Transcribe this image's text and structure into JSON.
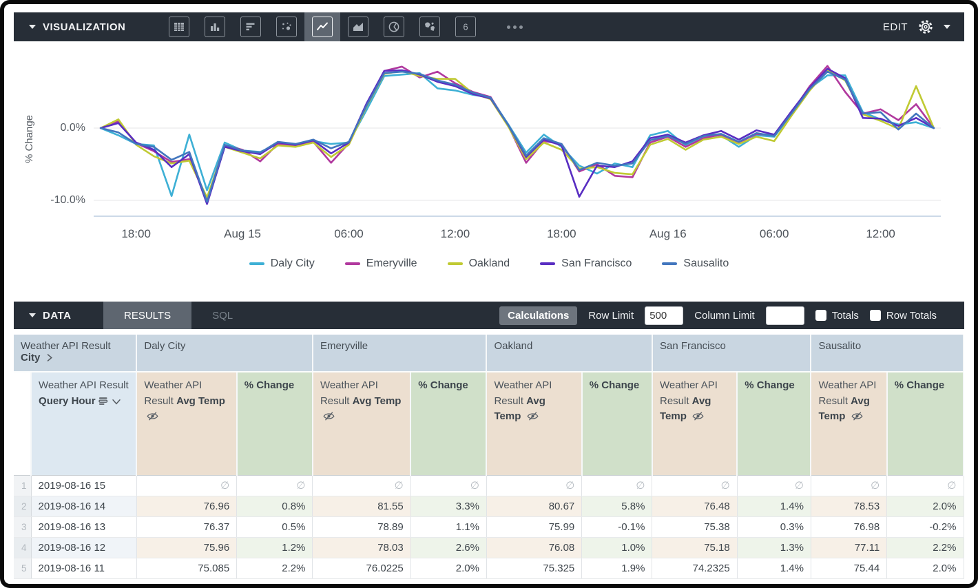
{
  "viz_bar": {
    "title": "VISUALIZATION",
    "icons": [
      "table",
      "column",
      "bar",
      "scatter",
      "line",
      "area",
      "pie",
      "map",
      "single-value"
    ],
    "selected_icon": "line",
    "single_value_glyph": "6",
    "edit_label": "EDIT"
  },
  "chart_data": {
    "type": "line",
    "title": "",
    "xlabel": "",
    "ylabel": "% Change",
    "grid": "horizontal",
    "legend_position": "bottom",
    "ylim": [
      -11.5,
      9.5
    ],
    "y_gridlines": [
      {
        "value": 0,
        "label": "0.0%"
      },
      {
        "value": -10,
        "label": "-10.0%"
      }
    ],
    "x_start": "2019-08-14 16:00",
    "x_end": "2019-08-16 15:00",
    "x_interval_hours": 1,
    "x_ticks": [
      {
        "index": 2,
        "label": "18:00"
      },
      {
        "index": 8,
        "label": "Aug 15"
      },
      {
        "index": 14,
        "label": "06:00"
      },
      {
        "index": 20,
        "label": "12:00"
      },
      {
        "index": 26,
        "label": "18:00"
      },
      {
        "index": 32,
        "label": "Aug 16"
      },
      {
        "index": 38,
        "label": "06:00"
      },
      {
        "index": 44,
        "label": "12:00"
      }
    ],
    "series": [
      {
        "name": "Daly City",
        "color": "#3EB0D5",
        "values": [
          0,
          -1.0,
          -2.2,
          -2.4,
          -9.4,
          -0.9,
          -8.6,
          -2.0,
          -3.1,
          -3.3,
          -2.2,
          -2.4,
          -1.8,
          -2.2,
          -2.0,
          2.5,
          7.2,
          7.4,
          7.6,
          5.5,
          5.2,
          4.6,
          4.2,
          0.5,
          -3.4,
          -0.9,
          -2.6,
          -5.2,
          -6.3,
          -4.9,
          -5.4,
          -1.0,
          -0.4,
          -2.4,
          -1.2,
          -1.0,
          -2.6,
          -1.0,
          -1.2,
          2.0,
          5.5,
          7.3,
          7.3,
          2.2,
          1.2,
          0.5,
          0.8,
          0.0
        ]
      },
      {
        "name": "Emeryville",
        "color": "#B1399E",
        "values": [
          0,
          0.9,
          -2.1,
          -3.2,
          -4.7,
          -4.3,
          -9.8,
          -2.4,
          -3.0,
          -4.6,
          -2.2,
          -2.4,
          -1.9,
          -4.8,
          -2.1,
          3.2,
          7.9,
          8.5,
          7.0,
          7.8,
          6.2,
          5.0,
          4.3,
          0.3,
          -4.8,
          -1.8,
          -2.2,
          -6.0,
          -5.0,
          -6.6,
          -6.8,
          -2.0,
          -1.2,
          -2.6,
          -1.4,
          -0.9,
          -2.0,
          -0.8,
          -1.0,
          2.2,
          5.8,
          8.6,
          5.0,
          2.0,
          2.6,
          1.1,
          3.3,
          0.0
        ]
      },
      {
        "name": "Oakland",
        "color": "#C0CA33",
        "values": [
          0,
          1.2,
          -2.3,
          -3.9,
          -4.9,
          -4.5,
          -9.6,
          -2.6,
          -3.4,
          -4.2,
          -2.4,
          -2.6,
          -2.0,
          -4.0,
          -2.3,
          3.0,
          7.5,
          7.9,
          7.2,
          6.8,
          6.8,
          4.8,
          4.0,
          0.2,
          -4.3,
          -2.0,
          -3.0,
          -5.6,
          -5.4,
          -6.2,
          -6.4,
          -2.3,
          -1.5,
          -3.0,
          -1.6,
          -1.2,
          -2.2,
          -1.2,
          -1.8,
          1.8,
          5.2,
          8.0,
          6.6,
          1.9,
          1.0,
          -0.1,
          5.8,
          0.0
        ]
      },
      {
        "name": "San Francisco",
        "color": "#592EC2",
        "values": [
          0,
          0.7,
          -2.0,
          -3.0,
          -5.4,
          -3.6,
          -10.5,
          -2.6,
          -3.2,
          -3.6,
          -2.0,
          -2.3,
          -1.7,
          -3.5,
          -2.0,
          3.4,
          7.9,
          8.0,
          7.4,
          6.4,
          5.8,
          4.7,
          4.1,
          0.4,
          -4.0,
          -1.6,
          -2.4,
          -9.5,
          -5.2,
          -5.4,
          -4.6,
          -1.4,
          -0.9,
          -2.0,
          -1.0,
          -0.4,
          -1.6,
          -0.3,
          -0.9,
          2.4,
          5.6,
          8.2,
          6.9,
          1.4,
          1.3,
          0.3,
          1.4,
          0.0
        ]
      },
      {
        "name": "Sausalito",
        "color": "#4276BE",
        "values": [
          0,
          -0.6,
          -2.2,
          -2.6,
          -4.4,
          -3.3,
          -10.2,
          -2.3,
          -3.1,
          -3.4,
          -1.9,
          -2.2,
          -1.6,
          -2.8,
          -1.9,
          3.1,
          7.6,
          7.8,
          7.5,
          6.6,
          6.0,
          4.9,
          4.2,
          0.4,
          -3.8,
          -1.4,
          -2.2,
          -5.8,
          -4.8,
          -5.2,
          -4.9,
          -1.7,
          -1.1,
          -2.2,
          -1.1,
          -0.8,
          -1.9,
          -0.7,
          -1.1,
          2.1,
          5.4,
          7.8,
          6.7,
          2.0,
          2.2,
          -0.2,
          2.0,
          0.0
        ]
      }
    ]
  },
  "data_bar": {
    "title": "DATA",
    "tabs": [
      {
        "label": "RESULTS",
        "active": true
      },
      {
        "label": "SQL",
        "active": false
      }
    ],
    "calculations_label": "Calculations",
    "row_limit_label": "Row Limit",
    "row_limit_value": "500",
    "column_limit_label": "Column Limit",
    "column_limit_value": "",
    "totals_label": "Totals",
    "row_totals_label": "Row Totals"
  },
  "table": {
    "corner_header": {
      "prefix": "Weather API Result",
      "bold": "City"
    },
    "cities": [
      "Daly City",
      "Emeryville",
      "Oakland",
      "San Francisco",
      "Sausalito"
    ],
    "hour_header": {
      "prefix": "Weather API Result",
      "bold": "Query Hour"
    },
    "temp_header": {
      "prefix": "Weather API Result",
      "bold": "Avg Temp"
    },
    "change_header": {
      "bold": "% Change"
    },
    "null_symbol": "∅",
    "rows": [
      {
        "n": "1",
        "hour": "2019-08-16 15",
        "cells": [
          [
            "∅",
            "∅"
          ],
          [
            "∅",
            "∅"
          ],
          [
            "∅",
            "∅"
          ],
          [
            "∅",
            "∅"
          ],
          [
            "∅",
            "∅"
          ]
        ]
      },
      {
        "n": "2",
        "hour": "2019-08-16 14",
        "cells": [
          [
            "76.96",
            "0.8%"
          ],
          [
            "81.55",
            "3.3%"
          ],
          [
            "80.67",
            "5.8%"
          ],
          [
            "76.48",
            "1.4%"
          ],
          [
            "78.53",
            "2.0%"
          ]
        ]
      },
      {
        "n": "3",
        "hour": "2019-08-16 13",
        "cells": [
          [
            "76.37",
            "0.5%"
          ],
          [
            "78.89",
            "1.1%"
          ],
          [
            "75.99",
            "-0.1%"
          ],
          [
            "75.38",
            "0.3%"
          ],
          [
            "76.98",
            "-0.2%"
          ]
        ]
      },
      {
        "n": "4",
        "hour": "2019-08-16 12",
        "cells": [
          [
            "75.96",
            "1.2%"
          ],
          [
            "78.03",
            "2.6%"
          ],
          [
            "76.08",
            "1.0%"
          ],
          [
            "75.18",
            "1.3%"
          ],
          [
            "77.11",
            "2.2%"
          ]
        ]
      },
      {
        "n": "5",
        "hour": "2019-08-16 11",
        "cells": [
          [
            "75.085",
            "2.2%"
          ],
          [
            "76.0225",
            "2.0%"
          ],
          [
            "75.325",
            "1.9%"
          ],
          [
            "74.2325",
            "1.4%"
          ],
          [
            "75.44",
            "2.0%"
          ]
        ]
      }
    ]
  }
}
